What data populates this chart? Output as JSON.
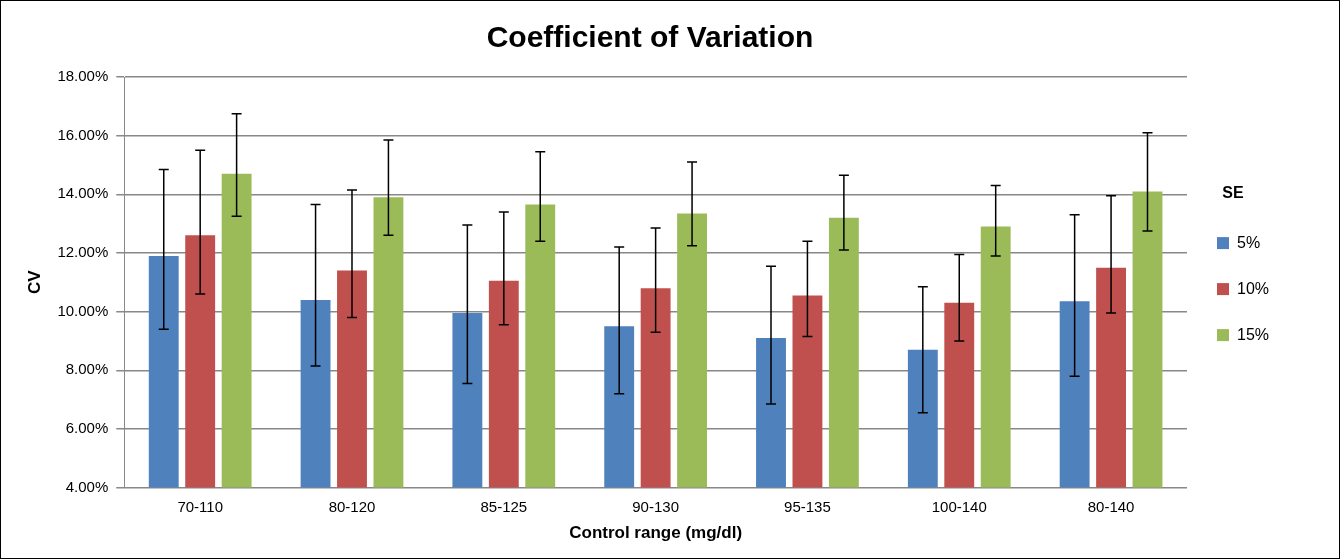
{
  "chart_data": {
    "type": "bar",
    "title": "Coefficient of Variation",
    "xlabel": "Control range (mg/dl)",
    "ylabel": "CV",
    "legend_title": "SE",
    "categories": [
      "70-110",
      "80-120",
      "85-125",
      "90-130",
      "95-135",
      "100-140",
      "80-140"
    ],
    "series": [
      {
        "name": "5%",
        "color": "#4f81bd",
        "values": [
          11.9,
          10.4,
          9.95,
          9.5,
          9.1,
          8.7,
          10.35
        ],
        "errors": [
          [
            9.4,
            14.85
          ],
          [
            8.15,
            13.65
          ],
          [
            7.55,
            12.95
          ],
          [
            7.2,
            12.2
          ],
          [
            6.85,
            11.55
          ],
          [
            6.55,
            10.85
          ],
          [
            7.8,
            13.3
          ]
        ]
      },
      {
        "name": "10%",
        "color": "#c0504d",
        "values": [
          12.6,
          11.4,
          11.05,
          10.8,
          10.55,
          10.3,
          11.5
        ],
        "errors": [
          [
            10.6,
            15.5
          ],
          [
            9.8,
            14.15
          ],
          [
            9.55,
            13.4
          ],
          [
            9.3,
            12.85
          ],
          [
            9.15,
            12.4
          ],
          [
            9.0,
            11.95
          ],
          [
            9.95,
            13.95
          ]
        ]
      },
      {
        "name": "15%",
        "color": "#9bbb59",
        "values": [
          14.7,
          13.9,
          13.65,
          13.35,
          13.2,
          12.9,
          14.1
        ],
        "errors": [
          [
            13.25,
            16.75
          ],
          [
            12.6,
            15.85
          ],
          [
            12.4,
            15.45
          ],
          [
            12.25,
            15.1
          ],
          [
            12.1,
            14.65
          ],
          [
            11.9,
            14.3
          ],
          [
            12.75,
            16.1
          ]
        ]
      }
    ],
    "ylim": [
      4,
      18
    ],
    "yticks": [
      {
        "value": 4,
        "label": "4.00%"
      },
      {
        "value": 6,
        "label": "6.00%"
      },
      {
        "value": 8,
        "label": "8.00%"
      },
      {
        "value": 10,
        "label": "10.00%"
      },
      {
        "value": 12,
        "label": "12.00%"
      },
      {
        "value": 14,
        "label": "14.00%"
      },
      {
        "value": 16,
        "label": "16.00%"
      },
      {
        "value": 18,
        "label": "18.00%"
      }
    ],
    "grid": "y",
    "legend": "right"
  }
}
